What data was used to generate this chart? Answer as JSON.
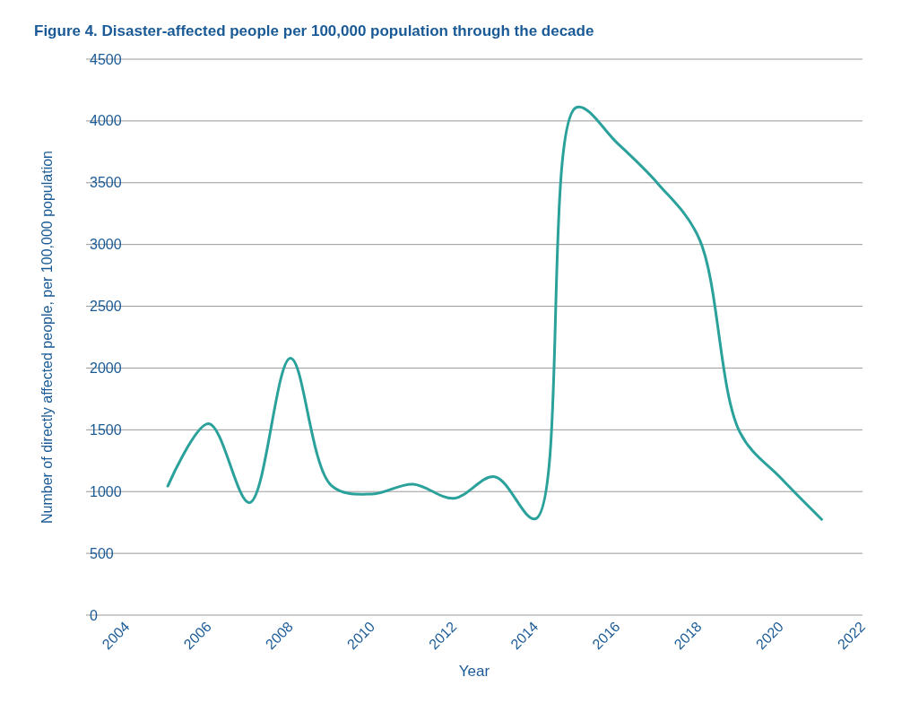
{
  "chart_data": {
    "type": "line",
    "title": "Figure 4. Disaster-affected people per 100,000 population through the decade",
    "xlabel": "Year",
    "ylabel": "Number of directly affected people, per 100,000 population",
    "x": [
      2005,
      2006,
      2007,
      2008,
      2009,
      2010,
      2011,
      2012,
      2013,
      2014,
      2015,
      2016,
      2017,
      2018,
      2019,
      2020,
      2021
    ],
    "series": [
      {
        "color": "#2aa19b",
        "values": [
          1045,
          1550,
          910,
          2080,
          1050,
          980,
          1060,
          945,
          1120,
          780,
          4110,
          3820,
          3490,
          3050,
          1480,
          1110,
          775
        ]
      }
    ],
    "xlim": [
      2003,
      2022
    ],
    "xticks": [
      2004,
      2006,
      2008,
      2010,
      2012,
      2014,
      2016,
      2018,
      2020,
      2022
    ],
    "ylim": [
      0,
      4500
    ],
    "yticks": [
      0,
      500,
      1000,
      1500,
      2000,
      2500,
      3000,
      3500,
      4000,
      4500
    ],
    "grid": "y",
    "marker": "none",
    "line_style": "solid"
  }
}
